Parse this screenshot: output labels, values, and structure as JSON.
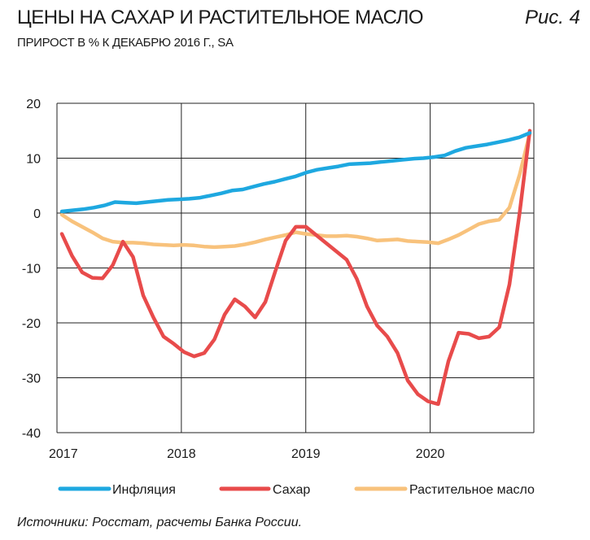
{
  "header": {
    "title": "ЦЕНЫ НА САХАР И РАСТИТЕЛЬНОЕ МАСЛО",
    "figure_label": "Рис. 4",
    "subtitle": "ПРИРОСТ В % К ДЕКАБРЮ 2016 Г., SA"
  },
  "footer": {
    "source": "Источники: Росстат, расчеты Банка России."
  },
  "chart_data": {
    "type": "line",
    "title": "ЦЕНЫ НА САХАР И РАСТИТЕЛЬНОЕ МАСЛО",
    "subtitle": "ПРИРОСТ В % К ДЕКАБРЮ 2016 Г., SA",
    "xlabel": "",
    "ylabel": "",
    "x_start": "2017-01",
    "x_end": "2020-11",
    "x_ticks": [
      "2017",
      "2018",
      "2019",
      "2020"
    ],
    "ylim": [
      -40,
      20
    ],
    "y_ticks": [
      20,
      10,
      0,
      -10,
      -20,
      -30,
      -40
    ],
    "grid": true,
    "legend_position": "bottom",
    "series": [
      {
        "name": "Инфляция",
        "color": "#1ea8e0",
        "values": [
          0.3,
          0.5,
          0.7,
          1.0,
          1.4,
          2.0,
          1.9,
          1.8,
          2.0,
          2.2,
          2.4,
          2.5,
          2.6,
          2.8,
          3.2,
          3.6,
          4.1,
          4.3,
          4.8,
          5.3,
          5.7,
          6.2,
          6.7,
          7.4,
          7.9,
          8.2,
          8.5,
          8.9,
          9.0,
          9.1,
          9.3,
          9.5,
          9.7,
          9.9,
          10.0,
          10.2,
          10.5,
          11.3,
          11.9,
          12.2,
          12.5,
          12.9,
          13.3,
          13.8,
          14.6
        ]
      },
      {
        "name": "Сахар",
        "color": "#e84b4b",
        "values": [
          -3.8,
          -7.8,
          -10.8,
          -11.8,
          -11.9,
          -9.5,
          -5.2,
          -8.0,
          -15.0,
          -19.0,
          -22.5,
          -23.8,
          -25.3,
          -26.1,
          -25.5,
          -23.0,
          -18.5,
          -15.7,
          -17.0,
          -19.0,
          -16.2,
          -10.5,
          -5.0,
          -2.5,
          -2.5,
          -4.0,
          -5.5,
          -7.0,
          -8.5,
          -12.0,
          -17.0,
          -20.5,
          -22.5,
          -25.5,
          -30.5,
          -33.0,
          -34.3,
          -34.8,
          -27.0,
          -21.8,
          -22.0,
          -22.8,
          -22.5,
          -20.8,
          -13.0,
          0.0,
          15.0
        ]
      },
      {
        "name": "Растительное масло",
        "color": "#f8c27c",
        "values": [
          -0.3,
          -1.5,
          -2.5,
          -3.5,
          -4.6,
          -5.2,
          -5.4,
          -5.4,
          -5.5,
          -5.7,
          -5.8,
          -5.9,
          -5.8,
          -5.9,
          -6.1,
          -6.2,
          -6.1,
          -6.0,
          -5.7,
          -5.3,
          -4.8,
          -4.4,
          -4.0,
          -3.5,
          -3.8,
          -4.0,
          -4.2,
          -4.2,
          -4.1,
          -4.3,
          -4.6,
          -5.0,
          -4.9,
          -4.8,
          -5.1,
          -5.2,
          -5.3,
          -5.5,
          -4.8,
          -4.0,
          -3.0,
          -2.0,
          -1.5,
          -1.2,
          1.0,
          7.0,
          14.5
        ]
      }
    ]
  }
}
